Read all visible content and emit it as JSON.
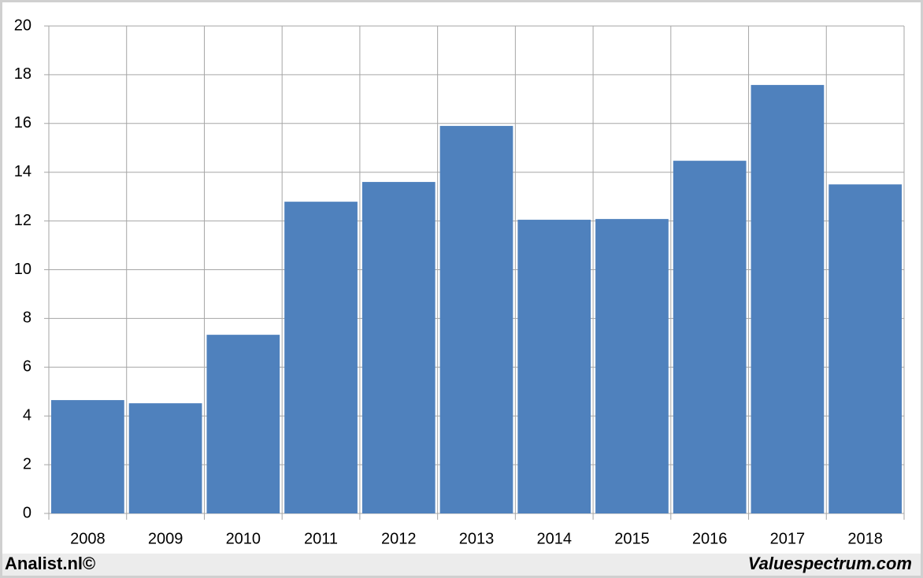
{
  "chart_data": {
    "type": "bar",
    "categories": [
      "2008",
      "2009",
      "2010",
      "2011",
      "2012",
      "2013",
      "2014",
      "2015",
      "2016",
      "2017",
      "2018"
    ],
    "values": [
      4.65,
      4.52,
      7.33,
      12.79,
      13.6,
      15.9,
      12.05,
      12.08,
      14.47,
      17.58,
      13.5
    ],
    "color": "#4f81bd",
    "ylim": [
      0,
      20
    ],
    "yticks": [
      0,
      2,
      4,
      6,
      8,
      10,
      12,
      14,
      16,
      18,
      20
    ],
    "grid": true
  },
  "footer": {
    "left": "Analist.nl©",
    "right": "Valuespectrum.com"
  }
}
